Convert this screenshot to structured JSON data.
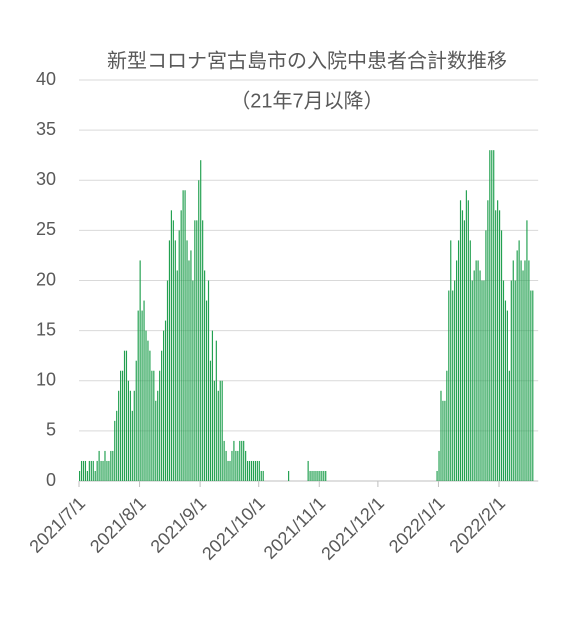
{
  "chart_data": {
    "type": "bar",
    "title": "新型コロナ宮古島市の入院中患者合計数推移",
    "subtitle": "（21年7月以降）",
    "color": "#22a050",
    "grid": true,
    "ylim": [
      0,
      40
    ],
    "yticks": [
      0,
      5,
      10,
      15,
      20,
      25,
      30,
      35,
      40
    ],
    "categories": [
      "2021/7/1",
      null,
      null,
      null,
      null,
      null,
      null,
      null,
      null,
      null,
      null,
      null,
      null,
      null,
      null,
      null,
      null,
      null,
      null,
      null,
      null,
      null,
      null,
      null,
      null,
      null,
      null,
      null,
      null,
      null,
      null,
      "2021/8/1",
      null,
      null,
      null,
      null,
      null,
      null,
      null,
      null,
      null,
      null,
      null,
      null,
      null,
      null,
      null,
      null,
      null,
      null,
      null,
      null,
      null,
      null,
      null,
      null,
      null,
      null,
      null,
      null,
      null,
      null,
      "2021/9/1",
      null,
      null,
      null,
      null,
      null,
      null,
      null,
      null,
      null,
      null,
      null,
      null,
      null,
      null,
      null,
      null,
      null,
      null,
      null,
      null,
      null,
      null,
      null,
      null,
      null,
      null,
      null,
      null,
      null,
      "2021/10/1",
      null,
      null,
      null,
      null,
      null,
      null,
      null,
      null,
      null,
      null,
      null,
      null,
      null,
      null,
      null,
      null,
      null,
      null,
      null,
      null,
      null,
      null,
      null,
      null,
      null,
      null,
      null,
      null,
      null,
      null,
      "2021/11/1",
      null,
      null,
      null,
      null,
      null,
      null,
      null,
      null,
      null,
      null,
      null,
      null,
      null,
      null,
      null,
      null,
      null,
      null,
      null,
      null,
      null,
      null,
      null,
      null,
      null,
      null,
      null,
      null,
      null,
      "2021/12/1",
      null,
      null,
      null,
      null,
      null,
      null,
      null,
      null,
      null,
      null,
      null,
      null,
      null,
      null,
      null,
      null,
      null,
      null,
      null,
      null,
      null,
      null,
      null,
      null,
      null,
      null,
      null,
      null,
      null,
      null,
      "2022/1/1",
      null,
      null,
      null,
      null,
      null,
      null,
      null,
      null,
      null,
      null,
      null,
      null,
      null,
      null,
      null,
      null,
      null,
      null,
      null,
      null,
      null,
      null,
      null,
      null,
      null,
      null,
      null,
      null,
      null,
      null,
      "2022/2/1",
      null,
      null,
      null,
      null,
      null,
      null,
      null,
      null,
      null,
      null,
      null,
      null,
      null,
      null,
      null,
      null,
      null
    ],
    "values": [
      1,
      2,
      2,
      2,
      1,
      2,
      2,
      2,
      1,
      2,
      3,
      2,
      2,
      3,
      2,
      2,
      3,
      3,
      6,
      7,
      9,
      11,
      11,
      13,
      13,
      10,
      9,
      7,
      9,
      12,
      17,
      22,
      17,
      18,
      15,
      14,
      13,
      11,
      11,
      8,
      9,
      11,
      13,
      15,
      16,
      20,
      24,
      27,
      26,
      24,
      21,
      25,
      27,
      29,
      29,
      24,
      22,
      23,
      20,
      26,
      26,
      30,
      32,
      26,
      21,
      18,
      20,
      12,
      15,
      10,
      14,
      9,
      10,
      10,
      4,
      3,
      2,
      2,
      3,
      4,
      3,
      3,
      4,
      4,
      4,
      3,
      2,
      2,
      2,
      2,
      2,
      2,
      2,
      1,
      1,
      0,
      0,
      0,
      0,
      0,
      0,
      0,
      0,
      0,
      0,
      0,
      0,
      1,
      0,
      0,
      0,
      0,
      0,
      0,
      0,
      0,
      0,
      2,
      1,
      1,
      1,
      1,
      1,
      1,
      1,
      1,
      1,
      0,
      0,
      0,
      0,
      0,
      0,
      0,
      0,
      0,
      0,
      0,
      0,
      0,
      0,
      0,
      0,
      0,
      0,
      0,
      0,
      0,
      0,
      0,
      0,
      0,
      0,
      0,
      0,
      0,
      0,
      0,
      0,
      0,
      0,
      0,
      0,
      0,
      0,
      0,
      0,
      0,
      0,
      0,
      0,
      0,
      0,
      0,
      0,
      0,
      0,
      0,
      0,
      0,
      0,
      0,
      0,
      1,
      3,
      9,
      8,
      8,
      11,
      19,
      24,
      19,
      20,
      22,
      24,
      28,
      27,
      26,
      29,
      28,
      24,
      20,
      21,
      22,
      22,
      21,
      20,
      20,
      25,
      28,
      33,
      33,
      33,
      27,
      28,
      27,
      25,
      20,
      18,
      17,
      11,
      20,
      22,
      20,
      23,
      24,
      22,
      21,
      22,
      26,
      22,
      19,
      19
    ]
  }
}
